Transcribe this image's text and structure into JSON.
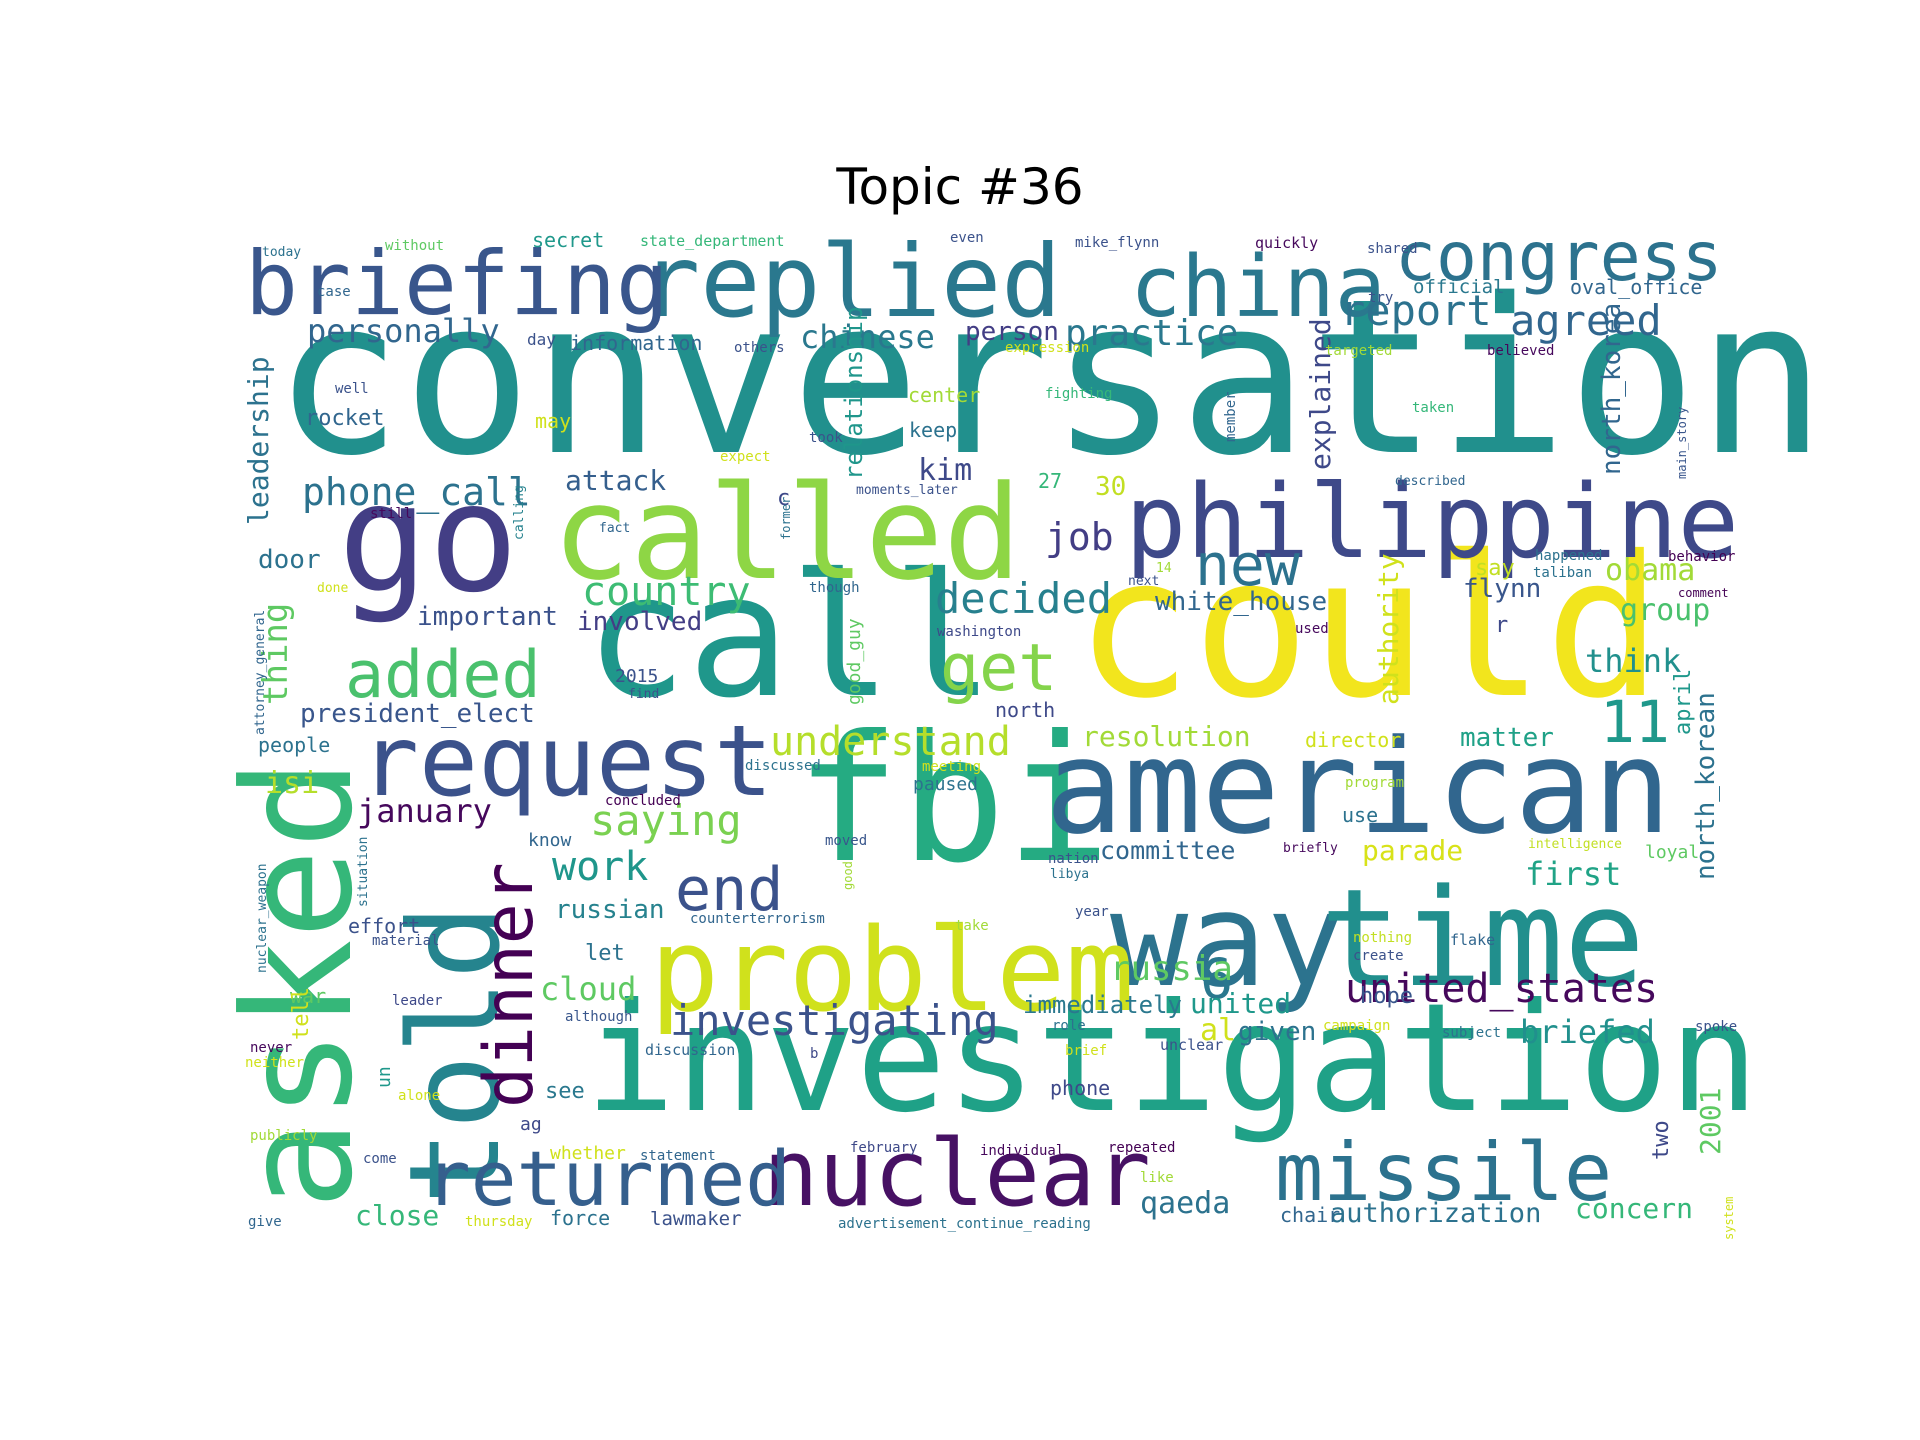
{
  "chart_data": {
    "type": "wordcloud",
    "title": "Topic #36",
    "words": [
      {
        "text": "conversation",
        "color": "#21908d"
      },
      {
        "text": "could",
        "color": "#f2e51d"
      },
      {
        "text": "call",
        "color": "#1f978b"
      },
      {
        "text": "fbi",
        "color": "#25ab82"
      },
      {
        "text": "investigation",
        "color": "#1fa187"
      },
      {
        "text": "american",
        "color": "#31668e"
      },
      {
        "text": "called",
        "color": "#8ed645"
      },
      {
        "text": "go",
        "color": "#433e85"
      },
      {
        "text": "way",
        "color": "#2c738e"
      },
      {
        "text": "time",
        "color": "#218f8d"
      },
      {
        "text": "asked",
        "color": "#35b779"
      },
      {
        "text": "told",
        "color": "#25848e"
      },
      {
        "text": "problem",
        "color": "#d0e11c"
      },
      {
        "text": "philippine",
        "color": "#3e4989"
      },
      {
        "text": "replied",
        "color": "#2a788e"
      },
      {
        "text": "china",
        "color": "#2a788e"
      },
      {
        "text": "briefing",
        "color": "#39568c"
      },
      {
        "text": "request",
        "color": "#3b528b"
      },
      {
        "text": "nuclear",
        "color": "#471164"
      },
      {
        "text": "missile",
        "color": "#2c728e"
      },
      {
        "text": "returned",
        "color": "#355f8d"
      },
      {
        "text": "congress",
        "color": "#2c728e"
      },
      {
        "text": "dinner",
        "color": "#440154"
      },
      {
        "text": "added",
        "color": "#4ac16d"
      },
      {
        "text": "get",
        "color": "#84d44b"
      },
      {
        "text": "end",
        "color": "#3b528b"
      },
      {
        "text": "new",
        "color": "#2c728e"
      },
      {
        "text": "11",
        "color": "#1f988b"
      },
      {
        "text": "6",
        "color": "#2a788e"
      },
      {
        "text": "investigating",
        "color": "#3b528b"
      },
      {
        "text": "united_states",
        "color": "#46085c"
      },
      {
        "text": "understand",
        "color": "#b5de2b"
      },
      {
        "text": "saying",
        "color": "#7ad151"
      },
      {
        "text": "decided",
        "color": "#27808e"
      },
      {
        "text": "report",
        "color": "#2c728e"
      },
      {
        "text": "agreed",
        "color": "#31668e"
      },
      {
        "text": "practice",
        "color": "#2a788e"
      },
      {
        "text": "personally",
        "color": "#31668e"
      },
      {
        "text": "chinese",
        "color": "#2a788e"
      },
      {
        "text": "phone_call",
        "color": "#2c728e"
      },
      {
        "text": "country",
        "color": "#3dbc74"
      },
      {
        "text": "work",
        "color": "#1f968b"
      },
      {
        "text": "russia",
        "color": "#5ec962"
      },
      {
        "text": "cloud",
        "color": "#5ec962"
      },
      {
        "text": "job",
        "color": "#433e85"
      },
      {
        "text": "january",
        "color": "#46085c"
      },
      {
        "text": "briefed",
        "color": "#21908d"
      },
      {
        "text": "obama",
        "color": "#a2da37"
      },
      {
        "text": "group",
        "color": "#4ac16d"
      },
      {
        "text": "think",
        "color": "#21908d"
      },
      {
        "text": "first",
        "color": "#20a386"
      },
      {
        "text": "parade",
        "color": "#d8e219"
      },
      {
        "text": "resolution",
        "color": "#a2da37"
      },
      {
        "text": "white_house",
        "color": "#31668e"
      },
      {
        "text": "thing",
        "color": "#5ec962"
      },
      {
        "text": "president_elect",
        "color": "#39568c"
      },
      {
        "text": "important",
        "color": "#3b528b"
      },
      {
        "text": "involved",
        "color": "#433e85"
      },
      {
        "text": "attack",
        "color": "#355f8d"
      },
      {
        "text": "leadership",
        "color": "#2c728e"
      },
      {
        "text": "explained",
        "color": "#3e4989"
      },
      {
        "text": "north_korea",
        "color": "#31668e"
      },
      {
        "text": "north_korean",
        "color": "#2c728e"
      },
      {
        "text": "authority",
        "color": "#d0e11c"
      },
      {
        "text": "relationship",
        "color": "#1f968b"
      },
      {
        "text": "matter",
        "color": "#1fa187"
      },
      {
        "text": "committee",
        "color": "#31668e"
      },
      {
        "text": "qaeda",
        "color": "#2c728e"
      },
      {
        "text": "authorization",
        "color": "#2c728e"
      },
      {
        "text": "concern",
        "color": "#35b779"
      },
      {
        "text": "close",
        "color": "#35b779"
      },
      {
        "text": "russian",
        "color": "#26828e"
      },
      {
        "text": "door",
        "color": "#2c728e"
      },
      {
        "text": "isi",
        "color": "#b5de2b"
      },
      {
        "text": "kim",
        "color": "#3e4989"
      },
      {
        "text": "person",
        "color": "#433e85"
      },
      {
        "text": "flynn",
        "color": "#39568c"
      },
      {
        "text": "immediately",
        "color": "#2a788e"
      },
      {
        "text": "united",
        "color": "#1f988b"
      },
      {
        "text": "2001",
        "color": "#5ec962"
      },
      {
        "text": "april",
        "color": "#1f988b"
      },
      {
        "text": "two",
        "color": "#3e4989"
      },
      {
        "text": "al",
        "color": "#d0e11c"
      },
      {
        "text": "given",
        "color": "#2c728e"
      },
      {
        "text": "hope",
        "color": "#39568c"
      },
      {
        "text": "secret",
        "color": "#1f988b"
      },
      {
        "text": "information",
        "color": "#31668e"
      },
      {
        "text": "official",
        "color": "#2a788e"
      },
      {
        "text": "oval_office",
        "color": "#31668e"
      },
      {
        "text": "rocket",
        "color": "#31668e"
      },
      {
        "text": "may",
        "color": "#d0e11c"
      },
      {
        "text": "center",
        "color": "#a2da37"
      },
      {
        "text": "keep",
        "color": "#2c728e"
      },
      {
        "text": "30",
        "color": "#c2df23"
      },
      {
        "text": "27",
        "color": "#35b779"
      },
      {
        "text": "c",
        "color": "#3e4989"
      },
      {
        "text": "say",
        "color": "#c2df23"
      },
      {
        "text": "r",
        "color": "#3e4989"
      },
      {
        "text": "people",
        "color": "#2c728e"
      },
      {
        "text": "know",
        "color": "#31668e"
      },
      {
        "text": "let",
        "color": "#2c728e"
      },
      {
        "text": "war",
        "color": "#5ec962"
      },
      {
        "text": "tell",
        "color": "#d0e11c"
      },
      {
        "text": "effort",
        "color": "#3b528b"
      },
      {
        "text": "see",
        "color": "#2a788e"
      },
      {
        "text": "ag",
        "color": "#3e4989"
      },
      {
        "text": "un",
        "color": "#1f988b"
      },
      {
        "text": "whether",
        "color": "#d0e11c"
      },
      {
        "text": "force",
        "color": "#2c728e"
      },
      {
        "text": "lawmaker",
        "color": "#3b528b"
      },
      {
        "text": "chair",
        "color": "#31668e"
      },
      {
        "text": "phone",
        "color": "#3e4989"
      },
      {
        "text": "north",
        "color": "#3e4989"
      },
      {
        "text": "2015",
        "color": "#3b528b"
      },
      {
        "text": "use",
        "color": "#2c728e"
      },
      {
        "text": "loyal",
        "color": "#5ec962"
      },
      {
        "text": "director",
        "color": "#d0e11c"
      },
      {
        "text": "paused",
        "color": "#2c728e"
      },
      {
        "text": "good_guy",
        "color": "#5ec962"
      },
      {
        "text": "day",
        "color": "#3b528b"
      },
      {
        "text": "others",
        "color": "#3b528b"
      },
      {
        "text": "expression",
        "color": "#d0e11c"
      },
      {
        "text": "targeted",
        "color": "#a2da37"
      },
      {
        "text": "believed",
        "color": "#46085c"
      },
      {
        "text": "took",
        "color": "#3b528b"
      },
      {
        "text": "fighting",
        "color": "#35b779"
      },
      {
        "text": "taken",
        "color": "#35b779"
      },
      {
        "text": "member",
        "color": "#31668e"
      },
      {
        "text": "main_story",
        "color": "#39568c"
      },
      {
        "text": "described",
        "color": "#31668e"
      },
      {
        "text": "moments_later",
        "color": "#3b528b"
      },
      {
        "text": "former",
        "color": "#2c728e"
      },
      {
        "text": "calling",
        "color": "#26828e"
      },
      {
        "text": "fact",
        "color": "#31668e"
      },
      {
        "text": "still",
        "color": "#46085c"
      },
      {
        "text": "well",
        "color": "#3b528b"
      },
      {
        "text": "expect",
        "color": "#d0e11c"
      },
      {
        "text": "though",
        "color": "#31668e"
      },
      {
        "text": "done",
        "color": "#d0e11c"
      },
      {
        "text": "attorney_general",
        "color": "#31668e"
      },
      {
        "text": "washington",
        "color": "#3e4989"
      },
      {
        "text": "find",
        "color": "#3b528b"
      },
      {
        "text": "discussed",
        "color": "#2c728e"
      },
      {
        "text": "concluded",
        "color": "#440154"
      },
      {
        "text": "meeting",
        "color": "#d0e11c"
      },
      {
        "text": "program",
        "color": "#a2da37"
      },
      {
        "text": "moved",
        "color": "#39568c"
      },
      {
        "text": "good",
        "color": "#a2da37"
      },
      {
        "text": "situation",
        "color": "#2c728e"
      },
      {
        "text": "nuclear_weapon",
        "color": "#2c728e"
      },
      {
        "text": "material",
        "color": "#3b528b"
      },
      {
        "text": "counterterrorism",
        "color": "#31668e"
      },
      {
        "text": "take",
        "color": "#a2da37"
      },
      {
        "text": "year",
        "color": "#3b528b"
      },
      {
        "text": "nation",
        "color": "#3b528b"
      },
      {
        "text": "libya",
        "color": "#2c728e"
      },
      {
        "text": "briefly",
        "color": "#46085c"
      },
      {
        "text": "intelligence",
        "color": "#c2df23"
      },
      {
        "text": "nothing",
        "color": "#c2df23"
      },
      {
        "text": "create",
        "color": "#3b528b"
      },
      {
        "text": "flake",
        "color": "#31668e"
      },
      {
        "text": "leader",
        "color": "#3e4989"
      },
      {
        "text": "although",
        "color": "#39568c"
      },
      {
        "text": "role",
        "color": "#2c728e"
      },
      {
        "text": "campaign",
        "color": "#d0e11c"
      },
      {
        "text": "subject",
        "color": "#2c728e"
      },
      {
        "text": "spoke",
        "color": "#3b528b"
      },
      {
        "text": "never",
        "color": "#46085c"
      },
      {
        "text": "neither",
        "color": "#d0e11c"
      },
      {
        "text": "discussion",
        "color": "#31668e"
      },
      {
        "text": "b",
        "color": "#3e4989"
      },
      {
        "text": "brief",
        "color": "#d0e11c"
      },
      {
        "text": "unclear",
        "color": "#3b528b"
      },
      {
        "text": "alone",
        "color": "#d0e11c"
      },
      {
        "text": "publicly",
        "color": "#a2da37"
      },
      {
        "text": "come",
        "color": "#3b528b"
      },
      {
        "text": "statement",
        "color": "#31668e"
      },
      {
        "text": "february",
        "color": "#3e4989"
      },
      {
        "text": "individual",
        "color": "#46085c"
      },
      {
        "text": "repeated",
        "color": "#440154"
      },
      {
        "text": "like",
        "color": "#a2da37"
      },
      {
        "text": "system",
        "color": "#d0e11c"
      },
      {
        "text": "give",
        "color": "#31668e"
      },
      {
        "text": "thursday",
        "color": "#d0e11c"
      },
      {
        "text": "advertisement_continue_reading",
        "color": "#2c728e"
      },
      {
        "text": "today",
        "color": "#2c728e"
      },
      {
        "text": "without",
        "color": "#5ec962"
      },
      {
        "text": "state_department",
        "color": "#35b779"
      },
      {
        "text": "even",
        "color": "#3b528b"
      },
      {
        "text": "mike_flynn",
        "color": "#3b528b"
      },
      {
        "text": "quickly",
        "color": "#46085c"
      },
      {
        "text": "shared",
        "color": "#3b528b"
      },
      {
        "text": "case",
        "color": "#31668e"
      },
      {
        "text": "try",
        "color": "#3b528b"
      },
      {
        "text": "happened",
        "color": "#2c728e"
      },
      {
        "text": "behavior",
        "color": "#440154"
      },
      {
        "text": "taliban",
        "color": "#2c728e"
      },
      {
        "text": "comment",
        "color": "#440154"
      },
      {
        "text": "next",
        "color": "#3b528b"
      },
      {
        "text": "14",
        "color": "#a2da37"
      },
      {
        "text": "used",
        "color": "#46085c"
      }
    ]
  }
}
